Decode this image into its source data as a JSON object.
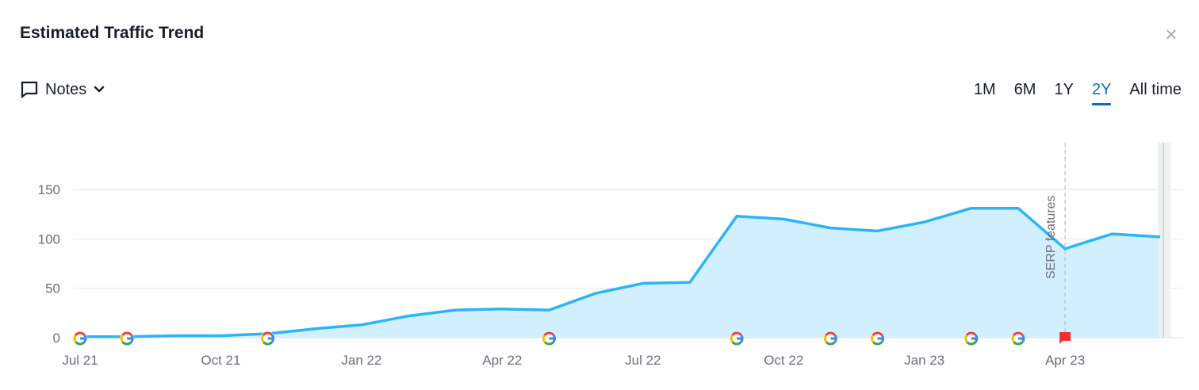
{
  "header": {
    "title": "Estimated Traffic Trend",
    "close_icon": "close-icon"
  },
  "toolbar": {
    "notes_label": "Notes",
    "notes_icon": "comment-icon",
    "dropdown_icon": "chevron-down-icon",
    "ranges": [
      "1M",
      "6M",
      "1Y",
      "2Y",
      "All time"
    ],
    "active_range": "2Y"
  },
  "colors": {
    "line": "#2bb5f7",
    "area": "#d2efff",
    "grid": "#e3e6eb",
    "accent": "#006dca",
    "flag": "#f0302f"
  },
  "chart_data": {
    "type": "area",
    "xlabels": [
      "Jul 21",
      "Oct 21",
      "Jan 22",
      "Apr 22",
      "Jul 22",
      "Oct 22",
      "Jan 23",
      "Apr 23"
    ],
    "x": [
      "2021-07",
      "2021-08",
      "2021-09",
      "2021-10",
      "2021-11",
      "2021-12",
      "2022-01",
      "2022-02",
      "2022-03",
      "2022-04",
      "2022-05",
      "2022-06",
      "2022-07",
      "2022-08",
      "2022-09",
      "2022-10",
      "2022-11",
      "2022-12",
      "2023-01",
      "2023-02",
      "2023-03",
      "2023-04",
      "2023-05",
      "2023-06"
    ],
    "series": [
      {
        "values": [
          1,
          1,
          2,
          2,
          4,
          9,
          13,
          22,
          28,
          29,
          28,
          45,
          55,
          56,
          123,
          120,
          111,
          108,
          117,
          131,
          131,
          90,
          105,
          102
        ]
      }
    ],
    "yticks": [
      0,
      50,
      100,
      150
    ],
    "ylim": [
      0,
      150
    ],
    "grid": true,
    "google_update_markers": [
      "2021-07",
      "2021-08",
      "2021-11",
      "2022-05",
      "2022-09",
      "2022-11",
      "2022-12",
      "2023-02",
      "2023-03"
    ],
    "flag_marker": "2023-04",
    "annotation": {
      "x": "2023-04",
      "text": "SERP features"
    }
  }
}
